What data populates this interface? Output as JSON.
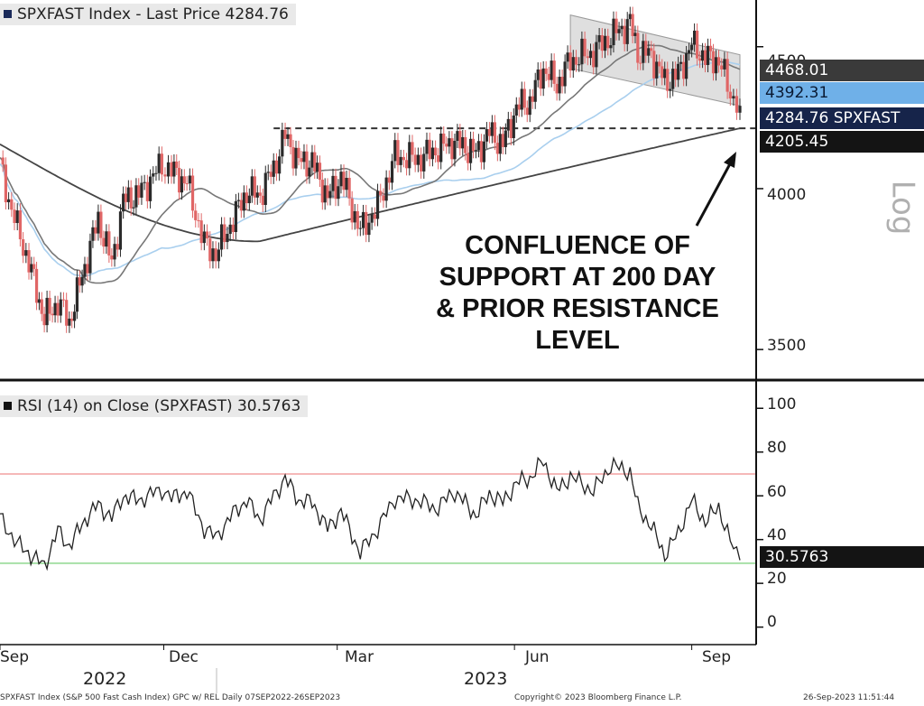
{
  "price_legend": "SPXFAST Index - Last Price 4284.76",
  "rsi_legend": "RSI (14)  on Close (SPXFAST) 30.5763",
  "scale_label": "Log",
  "annotation": [
    "CONFLUENCE OF",
    "SUPPORT AT 200 DAY",
    "& PRIOR RESISTANCE",
    "LEVEL"
  ],
  "tags": {
    "t1": "4468.01",
    "t2": "4392.31",
    "t3": "4284.76 SPXFAST",
    "t4": "4205.45",
    "rsi": "30.5763"
  },
  "price_ticks": [
    "4500",
    "4000",
    "3500"
  ],
  "rsi_ticks": [
    "100",
    "80",
    "60",
    "40",
    "20",
    "0"
  ],
  "x_ticks": [
    "Sep",
    "Dec",
    "Mar",
    "Jun",
    "Sep"
  ],
  "years": [
    "2022",
    "2023"
  ],
  "footer": {
    "left": "SPXFAST Index (S&P 500 Fast Cash Index) GPC w/ REL  Daily 07SEP2022-26SEP2023",
    "mid": "Copyright© 2023 Bloomberg Finance L.P.",
    "right": "26-Sep-2023 11:51:44"
  },
  "colors": {
    "up": "#2a2a2a",
    "down": "#e06666",
    "ma50": "#777777",
    "ma100": "#a9cfee",
    "ma200": "#444444",
    "rsi_upper": "#f2a0a0",
    "rsi_lower": "#8fd88f",
    "tag_dark": "#141414",
    "tag_navy": "#16244a",
    "tag_blue": "#6fb0e8",
    "tag_gray": "#3a3a3a"
  },
  "chart_data": [
    {
      "type": "candlestick",
      "title": "SPXFAST Index - Last Price 4284.76",
      "y_scale": "log",
      "ylim": [
        3420,
        4650
      ],
      "x_range": [
        "07SEP2022",
        "26SEP2023"
      ],
      "series": [
        {
          "name": "Last Price",
          "points": [
            [
              "2022-09-07",
              4080
            ],
            [
              "2022-09-13",
              3930
            ],
            [
              "2022-09-22",
              3760
            ],
            [
              "2022-09-30",
              3590
            ],
            [
              "2022-10-07",
              3640
            ],
            [
              "2022-10-13",
              3580
            ],
            [
              "2022-10-21",
              3750
            ],
            [
              "2022-10-28",
              3900
            ],
            [
              "2022-11-04",
              3760
            ],
            [
              "2022-11-10",
              3960
            ],
            [
              "2022-11-18",
              3980
            ],
            [
              "2022-11-30",
              4080
            ],
            [
              "2022-12-05",
              4060
            ],
            [
              "2022-12-13",
              4020
            ],
            [
              "2022-12-22",
              3820
            ],
            [
              "2022-12-28",
              3790
            ],
            [
              "2023-01-06",
              3900
            ],
            [
              "2023-01-13",
              3990
            ],
            [
              "2023-01-20",
              3980
            ],
            [
              "2023-01-27",
              4070
            ],
            [
              "2023-02-02",
              4180
            ],
            [
              "2023-02-09",
              4090
            ],
            [
              "2023-02-16",
              4090
            ],
            [
              "2023-02-24",
              3970
            ],
            [
              "2023-03-03",
              4040
            ],
            [
              "2023-03-13",
              3860
            ],
            [
              "2023-03-22",
              3940
            ],
            [
              "2023-03-31",
              4110
            ],
            [
              "2023-04-12",
              4100
            ],
            [
              "2023-04-21",
              4130
            ],
            [
              "2023-05-01",
              4160
            ],
            [
              "2023-05-12",
              4120
            ],
            [
              "2023-05-19",
              4190
            ],
            [
              "2023-05-26",
              4150
            ],
            [
              "2023-06-02",
              4280
            ],
            [
              "2023-06-09",
              4300
            ],
            [
              "2023-06-16",
              4420
            ],
            [
              "2023-06-23",
              4360
            ],
            [
              "2023-06-30",
              4450
            ],
            [
              "2023-07-12",
              4480
            ],
            [
              "2023-07-21",
              4540
            ],
            [
              "2023-07-31",
              4590
            ],
            [
              "2023-08-04",
              4480
            ],
            [
              "2023-08-11",
              4470
            ],
            [
              "2023-08-18",
              4370
            ],
            [
              "2023-08-25",
              4400
            ],
            [
              "2023-09-01",
              4510
            ],
            [
              "2023-09-08",
              4460
            ],
            [
              "2023-09-15",
              4450
            ],
            [
              "2023-09-21",
              4330
            ],
            [
              "2023-09-26",
              4284.76
            ]
          ]
        },
        {
          "name": "200-day MA",
          "end_value": 4205.45
        },
        {
          "name": "100-day MA",
          "end_value": 4392.31
        },
        {
          "name": "50-day MA",
          "end_value": 4468.01
        }
      ],
      "annotation": "CONFLUENCE OF SUPPORT AT 200 DAY & PRIOR RESISTANCE LEVEL",
      "horizontal_line": 4205.45
    },
    {
      "type": "line",
      "title": "RSI (14) on Close (SPXFAST) 30.5763",
      "ylim": [
        -8,
        110
      ],
      "reference_lines": [
        70,
        30
      ],
      "series": [
        {
          "name": "RSI (14)",
          "points": [
            [
              "2022-09-07",
              50
            ],
            [
              "2022-09-16",
              38
            ],
            [
              "2022-09-30",
              28
            ],
            [
              "2022-10-07",
              44
            ],
            [
              "2022-10-13",
              37
            ],
            [
              "2022-10-21",
              49
            ],
            [
              "2022-10-28",
              56
            ],
            [
              "2022-11-04",
              50
            ],
            [
              "2022-11-10",
              60
            ],
            [
              "2022-11-18",
              58
            ],
            [
              "2022-11-30",
              63
            ],
            [
              "2022-12-05",
              59
            ],
            [
              "2022-12-13",
              62
            ],
            [
              "2022-12-22",
              45
            ],
            [
              "2022-12-28",
              41
            ],
            [
              "2023-01-06",
              52
            ],
            [
              "2023-01-13",
              58
            ],
            [
              "2023-01-20",
              49
            ],
            [
              "2023-01-27",
              60
            ],
            [
              "2023-02-02",
              68
            ],
            [
              "2023-02-09",
              58
            ],
            [
              "2023-02-16",
              57
            ],
            [
              "2023-02-24",
              45
            ],
            [
              "2023-03-03",
              53
            ],
            [
              "2023-03-13",
              34
            ],
            [
              "2023-03-22",
              45
            ],
            [
              "2023-03-31",
              59
            ],
            [
              "2023-04-12",
              58
            ],
            [
              "2023-04-21",
              54
            ],
            [
              "2023-05-01",
              62
            ],
            [
              "2023-05-12",
              51
            ],
            [
              "2023-05-19",
              61
            ],
            [
              "2023-05-26",
              57
            ],
            [
              "2023-06-02",
              66
            ],
            [
              "2023-06-09",
              68
            ],
            [
              "2023-06-16",
              76
            ],
            [
              "2023-06-23",
              62
            ],
            [
              "2023-06-30",
              69
            ],
            [
              "2023-07-12",
              62
            ],
            [
              "2023-07-21",
              74
            ],
            [
              "2023-07-31",
              71
            ],
            [
              "2023-08-04",
              55
            ],
            [
              "2023-08-11",
              46
            ],
            [
              "2023-08-18",
              33
            ],
            [
              "2023-08-25",
              43
            ],
            [
              "2023-09-01",
              58
            ],
            [
              "2023-09-08",
              48
            ],
            [
              "2023-09-15",
              55
            ],
            [
              "2023-09-21",
              39
            ],
            [
              "2023-09-26",
              30.58
            ]
          ]
        }
      ]
    }
  ]
}
